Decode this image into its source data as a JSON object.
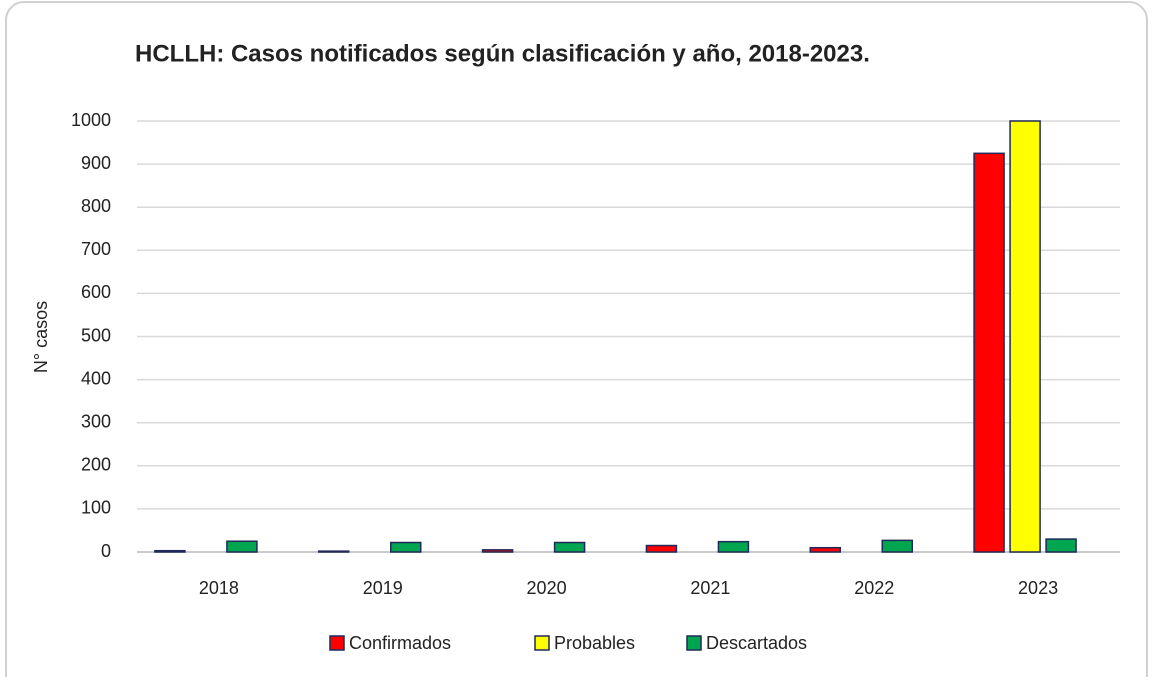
{
  "chart_data": {
    "type": "bar",
    "title": "HCLLH: Casos notificados según clasificación y año, 2018-2023.",
    "y_label": "N° casos",
    "categories": [
      "2018",
      "2019",
      "2020",
      "2021",
      "2022",
      "2023"
    ],
    "series": [
      {
        "name": "Confirmados",
        "color": "#ff0000",
        "values": [
          3,
          2,
          5,
          15,
          10,
          925
        ]
      },
      {
        "name": "Probables",
        "color": "#ffff00",
        "values": [
          0,
          0,
          0,
          0,
          0,
          1000
        ]
      },
      {
        "name": "Descartados",
        "color": "#00a550",
        "values": [
          25,
          22,
          22,
          24,
          27,
          30
        ]
      }
    ],
    "ylim": [
      0,
      1000
    ],
    "yticks": [
      0,
      100,
      200,
      300,
      400,
      500,
      600,
      700,
      800,
      900,
      1000
    ],
    "grid": true,
    "legend": "bottom"
  }
}
